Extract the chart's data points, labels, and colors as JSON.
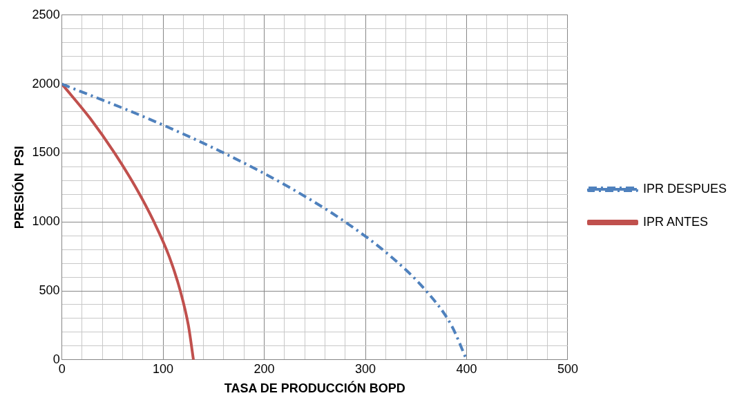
{
  "chart_data": {
    "type": "line",
    "xlabel": "TASA DE PRODUCCIÓN BOPD",
    "ylabel": "PRESIÓN  PSI",
    "xlim": [
      0,
      500
    ],
    "ylim": [
      0,
      2500
    ],
    "xticks": [
      0,
      {
        "value": 20,
        "label": null
      },
      {
        "value": 40,
        "label": null
      },
      {
        "value": 60,
        "label": null
      },
      {
        "value": 80,
        "label": null
      },
      100,
      {
        "value": 120,
        "label": null
      },
      {
        "value": 140,
        "label": null
      },
      {
        "value": 160,
        "label": null
      },
      {
        "value": 180,
        "label": null
      },
      200,
      {
        "value": 220,
        "label": null
      },
      {
        "value": 240,
        "label": null
      },
      {
        "value": 260,
        "label": null
      },
      {
        "value": 280,
        "label": null
      },
      300,
      {
        "value": 320,
        "label": null
      },
      {
        "value": 340,
        "label": null
      },
      {
        "value": 360,
        "label": null
      },
      {
        "value": 380,
        "label": null
      },
      400,
      {
        "value": 420,
        "label": null
      },
      {
        "value": 440,
        "label": null
      },
      {
        "value": 460,
        "label": null
      },
      {
        "value": 480,
        "label": null
      },
      500
    ],
    "yticks": [
      0,
      {
        "value": 100,
        "label": null
      },
      {
        "value": 200,
        "label": null
      },
      {
        "value": 300,
        "label": null
      },
      {
        "value": 400,
        "label": null
      },
      500,
      {
        "value": 600,
        "label": null
      },
      {
        "value": 700,
        "label": null
      },
      {
        "value": 800,
        "label": null
      },
      {
        "value": 900,
        "label": null
      },
      1000,
      {
        "value": 1100,
        "label": null
      },
      {
        "value": 1200,
        "label": null
      },
      {
        "value": 1300,
        "label": null
      },
      {
        "value": 1400,
        "label": null
      },
      1500,
      {
        "value": 1600,
        "label": null
      },
      {
        "value": 1700,
        "label": null
      },
      {
        "value": 1800,
        "label": null
      },
      {
        "value": 1900,
        "label": null
      },
      2000,
      {
        "value": 2100,
        "label": null
      },
      {
        "value": 2200,
        "label": null
      },
      {
        "value": 2300,
        "label": null
      },
      {
        "value": 2400,
        "label": null
      },
      2500
    ],
    "grid": true,
    "legend": "right",
    "marker": "none",
    "series": [
      {
        "name": "IPR DESPUES",
        "color": "#4f81bd",
        "line_style": "dashed",
        "x": [
          0,
          85,
          160,
          225,
          280,
          325,
          360,
          385,
          400
        ],
        "values": [
          2000,
          1750,
          1500,
          1250,
          1000,
          750,
          500,
          250,
          0
        ]
      },
      {
        "name": "IPR ANTES",
        "color": "#c0504d",
        "line_style": "solid",
        "x": [
          0,
          28,
          52,
          73,
          91,
          106,
          117,
          125,
          130
        ],
        "values": [
          2000,
          1750,
          1500,
          1250,
          1000,
          750,
          500,
          250,
          0
        ]
      }
    ]
  }
}
